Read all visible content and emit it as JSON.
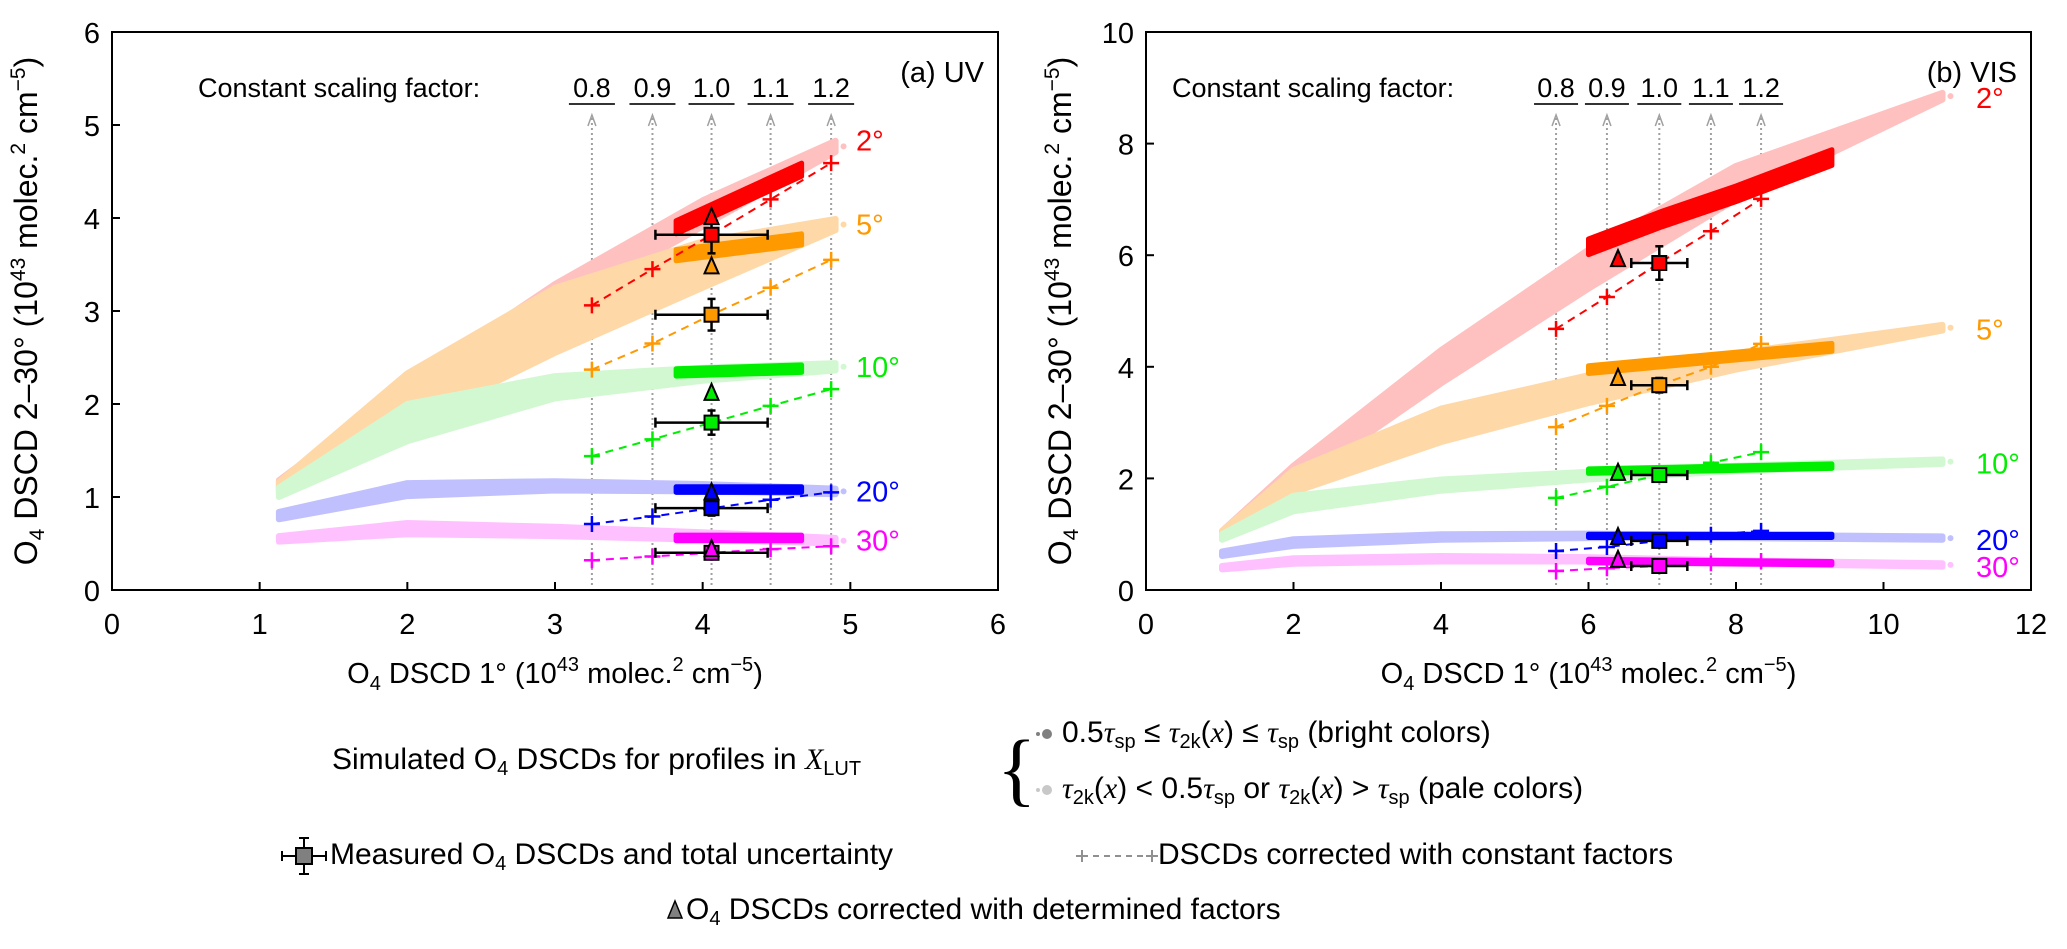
{
  "chart_data": [
    {
      "id": "uv",
      "type": "scatter",
      "panel_label": "(a) UV",
      "xlabel": "O4 DSCD 1° (10^43 molec.^2 cm^-5)",
      "ylabel": "O4 DSCD 2–30° (10^43 molec.^2 cm^-5)",
      "xlim": [
        0,
        6
      ],
      "ylim": [
        0,
        6
      ],
      "xticks": [
        0,
        1,
        2,
        3,
        4,
        5,
        6
      ],
      "yticks": [
        0,
        1,
        2,
        3,
        4,
        5,
        6
      ],
      "scaling_header": "Constant scaling factor:",
      "scaling_factors": [
        "0.8",
        "0.9",
        "1.0",
        "1.1",
        "1.2"
      ],
      "scaling_x": [
        3.25,
        3.66,
        4.06,
        4.46,
        4.87
      ],
      "measured_x": 4.06,
      "measured_xerr": 0.38,
      "series": [
        {
          "name": "2°",
          "color": "#ff0000",
          "pale": "#ffc0c0",
          "band_x": [
            1.13,
            2,
            3,
            4,
            4.9
          ],
          "band_y": [
            1.12,
            2.1,
            3.15,
            4.05,
            4.77
          ],
          "band_w": [
            0.06,
            0.12,
            0.14,
            0.14,
            0.06
          ],
          "bright_x": [
            3.82,
            4.67
          ],
          "bright_y": [
            3.9,
            4.52
          ],
          "bright_w": 0.07,
          "measured": 3.82,
          "measured_yerr": 0.2,
          "triangle": 4.01,
          "constant": [
            3.06,
            3.45,
            3.82,
            4.2,
            4.59
          ]
        },
        {
          "name": "5°",
          "color": "#ff9900",
          "pale": "#ffd8a8",
          "band_x": [
            1.13,
            2,
            3,
            4,
            4.9
          ],
          "band_y": [
            1.1,
            2.05,
            2.9,
            3.5,
            3.93
          ],
          "band_w": [
            0.06,
            0.28,
            0.35,
            0.25,
            0.06
          ],
          "bright_x": [
            3.82,
            4.67
          ],
          "bright_y": [
            3.6,
            3.77
          ],
          "bright_w": 0.06,
          "measured": 2.96,
          "measured_yerr": 0.17,
          "triangle": 3.48,
          "constant": [
            2.37,
            2.65,
            2.96,
            3.25,
            3.55
          ]
        },
        {
          "name": "10°",
          "color": "#00ee00",
          "pale": "#d2f8d2",
          "band_x": [
            1.13,
            2,
            3,
            4,
            4.9
          ],
          "band_y": [
            1.05,
            1.8,
            2.18,
            2.32,
            2.4
          ],
          "band_w": [
            0.05,
            0.2,
            0.12,
            0.07,
            0.04
          ],
          "bright_x": [
            3.82,
            4.67
          ],
          "bright_y": [
            2.34,
            2.38
          ],
          "bright_w": 0.04,
          "measured": 1.8,
          "measured_yerr": 0.13,
          "triangle": 2.12,
          "constant": [
            1.44,
            1.62,
            1.8,
            1.98,
            2.16
          ]
        },
        {
          "name": "20°",
          "color": "#0000ff",
          "pale": "#c0c0ff",
          "band_x": [
            1.13,
            2,
            3,
            4,
            4.9
          ],
          "band_y": [
            0.8,
            1.08,
            1.12,
            1.1,
            1.06
          ],
          "band_w": [
            0.04,
            0.07,
            0.05,
            0.04,
            0.03
          ],
          "bright_x": [
            3.82,
            4.67
          ],
          "bright_y": [
            1.08,
            1.08
          ],
          "bright_w": 0.03,
          "measured": 0.88,
          "measured_yerr": 0.08,
          "triangle": 1.05,
          "constant": [
            0.71,
            0.79,
            0.88,
            0.97,
            1.05
          ]
        },
        {
          "name": "30°",
          "color": "#ff00ff",
          "pale": "#ffc0ff",
          "band_x": [
            1.13,
            2,
            3,
            4,
            4.9
          ],
          "band_y": [
            0.55,
            0.66,
            0.63,
            0.58,
            0.53
          ],
          "band_w": [
            0.03,
            0.06,
            0.05,
            0.04,
            0.03
          ],
          "bright_x": [
            3.82,
            4.67
          ],
          "bright_y": [
            0.56,
            0.56
          ],
          "bright_w": 0.03,
          "measured": 0.4,
          "measured_yerr": 0.06,
          "triangle": 0.44,
          "constant": [
            0.32,
            0.36,
            0.4,
            0.44,
            0.47
          ]
        }
      ],
      "triangle_x": 4.06
    },
    {
      "id": "vis",
      "type": "scatter",
      "panel_label": "(b) VIS",
      "xlabel": "O4 DSCD 1° (10^43 molec.^2 cm^-5)",
      "ylabel": "O4 DSCD 2–30° (10^43 molec.^2 cm^-5)",
      "xlim": [
        0,
        12
      ],
      "ylim": [
        0,
        10
      ],
      "xticks": [
        0,
        2,
        4,
        6,
        8,
        10,
        12
      ],
      "yticks": [
        0,
        2,
        4,
        6,
        8,
        10
      ],
      "scaling_header": "Constant scaling factor:",
      "scaling_factors": [
        "0.8",
        "0.9",
        "1.0",
        "1.1",
        "1.2"
      ],
      "scaling_x": [
        5.56,
        6.25,
        6.96,
        7.66,
        8.34
      ],
      "measured_x": 6.96,
      "measured_xerr": 0.38,
      "series": [
        {
          "name": "2°",
          "color": "#ff0000",
          "pale": "#ffc0c0",
          "band_x": [
            1.03,
            2,
            4,
            6,
            8,
            10.8
          ],
          "band_y": [
            1.0,
            2.05,
            4.0,
            5.75,
            7.3,
            8.85
          ],
          "band_w": [
            0.06,
            0.18,
            0.3,
            0.35,
            0.3,
            0.06
          ],
          "bright_x": [
            6.0,
            7.0,
            8.0,
            9.3
          ],
          "bright_y": [
            6.15,
            6.65,
            7.1,
            7.75
          ],
          "bright_w": 0.14,
          "measured": 5.86,
          "measured_yerr": 0.3,
          "triangle": 5.93,
          "constant": [
            4.68,
            5.25,
            5.86,
            6.43,
            7.01
          ]
        },
        {
          "name": "5°",
          "color": "#ff9900",
          "pale": "#ffd8a8",
          "band_x": [
            1.03,
            2,
            4,
            6,
            8,
            10.8
          ],
          "band_y": [
            1.0,
            1.95,
            2.95,
            3.6,
            4.1,
            4.7
          ],
          "band_w": [
            0.06,
            0.2,
            0.3,
            0.25,
            0.15,
            0.05
          ],
          "bright_x": [
            6.0,
            9.3
          ],
          "bright_y": [
            3.95,
            4.35
          ],
          "bright_w": 0.07,
          "measured": 3.67,
          "measured_yerr": 0.13,
          "triangle": 3.8,
          "constant": [
            2.92,
            3.3,
            3.67,
            4.0,
            4.41
          ]
        },
        {
          "name": "10°",
          "color": "#00ee00",
          "pale": "#d2f8d2",
          "band_x": [
            1.03,
            2,
            4,
            6,
            8,
            10.8
          ],
          "band_y": [
            0.95,
            1.55,
            1.88,
            2.05,
            2.18,
            2.3
          ],
          "band_w": [
            0.05,
            0.14,
            0.1,
            0.07,
            0.05,
            0.04
          ],
          "bright_x": [
            6.0,
            9.3
          ],
          "bright_y": [
            2.13,
            2.22
          ],
          "bright_w": 0.04,
          "measured": 2.06,
          "measured_yerr": 0.05,
          "triangle": 2.1,
          "constant": [
            1.65,
            1.85,
            2.06,
            2.28,
            2.47
          ]
        },
        {
          "name": "20°",
          "color": "#0000ff",
          "pale": "#c0c0ff",
          "band_x": [
            1.03,
            2,
            4,
            6,
            8,
            10.8
          ],
          "band_y": [
            0.65,
            0.85,
            0.95,
            0.97,
            0.96,
            0.93
          ],
          "band_w": [
            0.04,
            0.06,
            0.05,
            0.04,
            0.03,
            0.03
          ],
          "bright_x": [
            6.0,
            9.3
          ],
          "bright_y": [
            0.97,
            0.97
          ],
          "bright_w": 0.03,
          "measured": 0.88,
          "measured_yerr": 0.04,
          "triangle": 0.95,
          "constant": [
            0.7,
            0.77,
            0.88,
            0.99,
            1.06
          ]
        },
        {
          "name": "30°",
          "color": "#ff00ff",
          "pale": "#ffc0ff",
          "band_x": [
            1.03,
            2,
            4,
            6,
            8,
            10.8
          ],
          "band_y": [
            0.4,
            0.52,
            0.56,
            0.55,
            0.5,
            0.45
          ],
          "band_w": [
            0.03,
            0.05,
            0.05,
            0.04,
            0.03,
            0.03
          ],
          "bright_x": [
            6.0,
            9.3
          ],
          "bright_y": [
            0.52,
            0.48
          ],
          "bright_w": 0.03,
          "measured": 0.43,
          "measured_yerr": 0.03,
          "triangle": 0.54,
          "constant": [
            0.34,
            0.39,
            0.43,
            0.48,
            0.52
          ]
        }
      ],
      "triangle_x": 6.4
    }
  ],
  "legend": {
    "simulated_prefix": "Simulated O",
    "simulated_sub": "4",
    "simulated_mid": " DSCDs for profiles in ",
    "simulated_x": "X",
    "simulated_x_sub": "LUT",
    "bright_label_a": "0.5",
    "bright_label_text": "0.5τsp ≤ τ2k(x) ≤ τsp (bright colors)",
    "pale_label_text": "τ2k(x) < 0.5τsp or τ2k(x) > τsp (pale colors)",
    "bright_suffix": "(bright colors)",
    "pale_suffix": "(pale colors)",
    "measured_prefix": "Measured O",
    "measured_suffix": " DSCDs and total uncertainty",
    "constant_label": "DSCDs corrected with constant factors",
    "determined_prefix": "O",
    "determined_suffix": " DSCDs corrected with determined factors",
    "sub4": "4",
    "tau": "τ",
    "sp": "sp",
    "twok": "2k",
    "x": "x",
    "leq": "≤",
    "lt": "<",
    "gt": ">",
    "or": "or",
    "half": "0.5"
  },
  "axis_text": {
    "x_prefix": "O",
    "x_sub": "4",
    "x_main": " DSCD 1° (10",
    "x_sup": "43",
    "x_mid": " molec.",
    "x_sup2": "2",
    "x_cm": " cm",
    "x_sup3": "−5",
    "x_end": ")",
    "y_main": " DSCD 2–30° (10"
  },
  "colors": {
    "legend_gray": "#808080",
    "legend_pale_gray": "#c8c8c8",
    "guide_gray": "#a0a0a0"
  }
}
